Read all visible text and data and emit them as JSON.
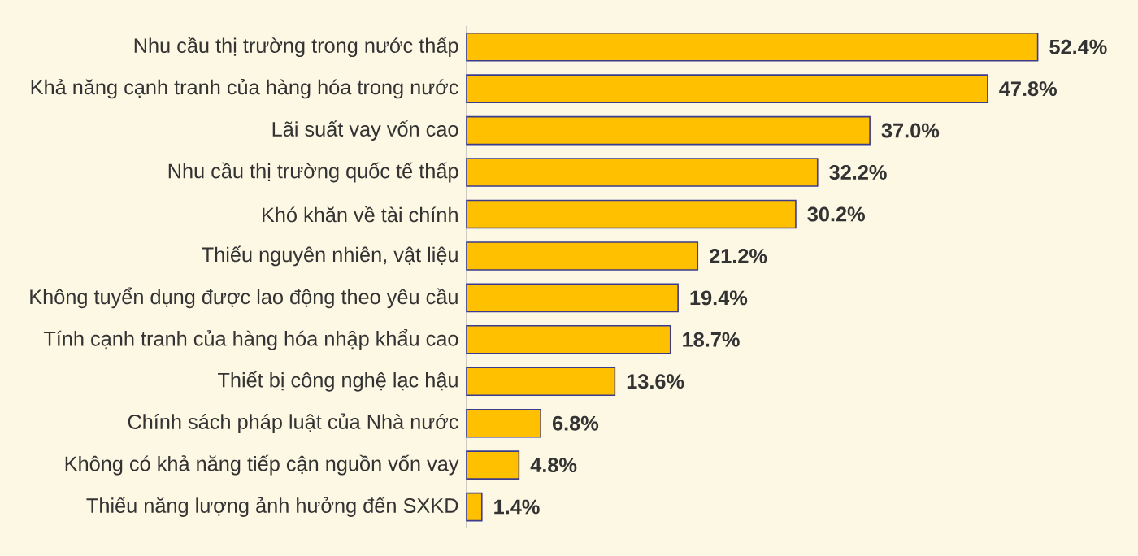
{
  "chart_data": {
    "type": "bar",
    "orientation": "horizontal",
    "color": "#ffc000",
    "categories": [
      "Nhu cầu thị trường trong nước thấp",
      "Khả năng cạnh tranh của hàng hóa trong nước",
      "Lãi suất vay vốn cao",
      "Nhu cầu thị trường quốc tế thấp",
      "Khó khăn về tài chính",
      "Thiếu nguyên nhiên, vật liệu",
      "Không tuyển dụng được lao động theo yêu cầu",
      "Tính cạnh tranh của hàng hóa nhập khẩu cao",
      "Thiết bị công nghệ lạc hậu",
      "Chính sách pháp luật của Nhà nước",
      "Không có khả năng tiếp cận nguồn vốn vay",
      "Thiếu năng lượng ảnh hưởng đến SXKD"
    ],
    "values": [
      52.4,
      47.8,
      37.0,
      32.2,
      30.2,
      21.2,
      19.4,
      18.7,
      13.6,
      6.8,
      4.8,
      1.4
    ],
    "value_labels": [
      "52.4%",
      "47.8%",
      "37.0%",
      "32.2%",
      "30.2%",
      "21.2%",
      "19.4%",
      "18.7%",
      "13.6%",
      "6.8%",
      "4.8%",
      "1.4%"
    ]
  }
}
